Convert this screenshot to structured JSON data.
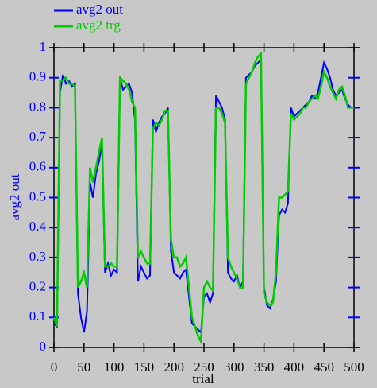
{
  "chart_data": {
    "type": "line",
    "x_label": "trial",
    "y_label": "avg2 out",
    "x": [
      0,
      5,
      10,
      15,
      20,
      25,
      30,
      35,
      40,
      45,
      50,
      55,
      60,
      65,
      70,
      75,
      80,
      85,
      90,
      95,
      100,
      105,
      110,
      115,
      120,
      125,
      130,
      135,
      140,
      145,
      150,
      155,
      160,
      165,
      170,
      175,
      180,
      185,
      190,
      195,
      200,
      205,
      210,
      215,
      220,
      225,
      230,
      235,
      240,
      245,
      250,
      255,
      260,
      265,
      270,
      275,
      280,
      285,
      290,
      295,
      300,
      305,
      310,
      315,
      320,
      325,
      330,
      335,
      340,
      345,
      350,
      355,
      360,
      365,
      370,
      375,
      380,
      385,
      390,
      395,
      400,
      405,
      410,
      415,
      420,
      425,
      430,
      435,
      440,
      445,
      450,
      455,
      460,
      465,
      470,
      475,
      480,
      485,
      490,
      495,
      500
    ],
    "series": [
      {
        "name": "avg2 out",
        "color": "#0000ff",
        "values": [
          0.08,
          0.07,
          0.85,
          0.91,
          0.88,
          0.89,
          0.87,
          0.88,
          0.18,
          0.1,
          0.05,
          0.12,
          0.55,
          0.5,
          0.58,
          0.62,
          0.68,
          0.25,
          0.28,
          0.24,
          0.26,
          0.25,
          0.9,
          0.86,
          0.87,
          0.88,
          0.85,
          0.76,
          0.22,
          0.27,
          0.25,
          0.23,
          0.24,
          0.76,
          0.72,
          0.75,
          0.77,
          0.78,
          0.8,
          0.32,
          0.25,
          0.24,
          0.23,
          0.25,
          0.26,
          0.17,
          0.08,
          0.07,
          0.06,
          0.05,
          0.17,
          0.18,
          0.15,
          0.18,
          0.84,
          0.82,
          0.8,
          0.76,
          0.25,
          0.23,
          0.22,
          0.24,
          0.2,
          0.22,
          0.9,
          0.91,
          0.92,
          0.94,
          0.95,
          0.96,
          0.2,
          0.14,
          0.13,
          0.16,
          0.22,
          0.44,
          0.46,
          0.45,
          0.48,
          0.8,
          0.77,
          0.78,
          0.79,
          0.8,
          0.81,
          0.82,
          0.84,
          0.83,
          0.85,
          0.9,
          0.95,
          0.93,
          0.9,
          0.86,
          0.84,
          0.85,
          0.86,
          0.83,
          0.81,
          0.8,
          0.8
        ]
      },
      {
        "name": "avg2 trg",
        "color": "#00cc00",
        "values": [
          0.1,
          0.07,
          0.89,
          0.89,
          0.9,
          0.88,
          0.88,
          0.87,
          0.2,
          0.22,
          0.25,
          0.2,
          0.6,
          0.55,
          0.6,
          0.65,
          0.7,
          0.27,
          0.27,
          0.28,
          0.27,
          0.27,
          0.9,
          0.89,
          0.88,
          0.86,
          0.82,
          0.8,
          0.3,
          0.32,
          0.3,
          0.28,
          0.28,
          0.73,
          0.75,
          0.74,
          0.76,
          0.79,
          0.79,
          0.36,
          0.3,
          0.3,
          0.27,
          0.28,
          0.3,
          0.2,
          0.1,
          0.07,
          0.04,
          0.02,
          0.2,
          0.22,
          0.2,
          0.19,
          0.8,
          0.8,
          0.78,
          0.75,
          0.3,
          0.27,
          0.25,
          0.23,
          0.2,
          0.2,
          0.88,
          0.9,
          0.92,
          0.95,
          0.97,
          0.98,
          0.18,
          0.15,
          0.14,
          0.15,
          0.25,
          0.5,
          0.5,
          0.51,
          0.52,
          0.78,
          0.76,
          0.77,
          0.78,
          0.8,
          0.8,
          0.82,
          0.83,
          0.84,
          0.83,
          0.87,
          0.92,
          0.9,
          0.87,
          0.85,
          0.83,
          0.86,
          0.87,
          0.84,
          0.8,
          0.8,
          0.8
        ]
      }
    ],
    "xlim": [
      0,
      500
    ],
    "xticks": [
      0,
      50,
      100,
      150,
      200,
      250,
      300,
      350,
      400,
      450,
      500
    ],
    "ylim": [
      0,
      1
    ],
    "yticks": [
      0,
      0.1,
      0.2,
      0.3,
      0.4,
      0.5,
      0.6,
      0.7,
      0.8,
      0.9,
      1
    ],
    "axis_color": "#0000ff"
  }
}
